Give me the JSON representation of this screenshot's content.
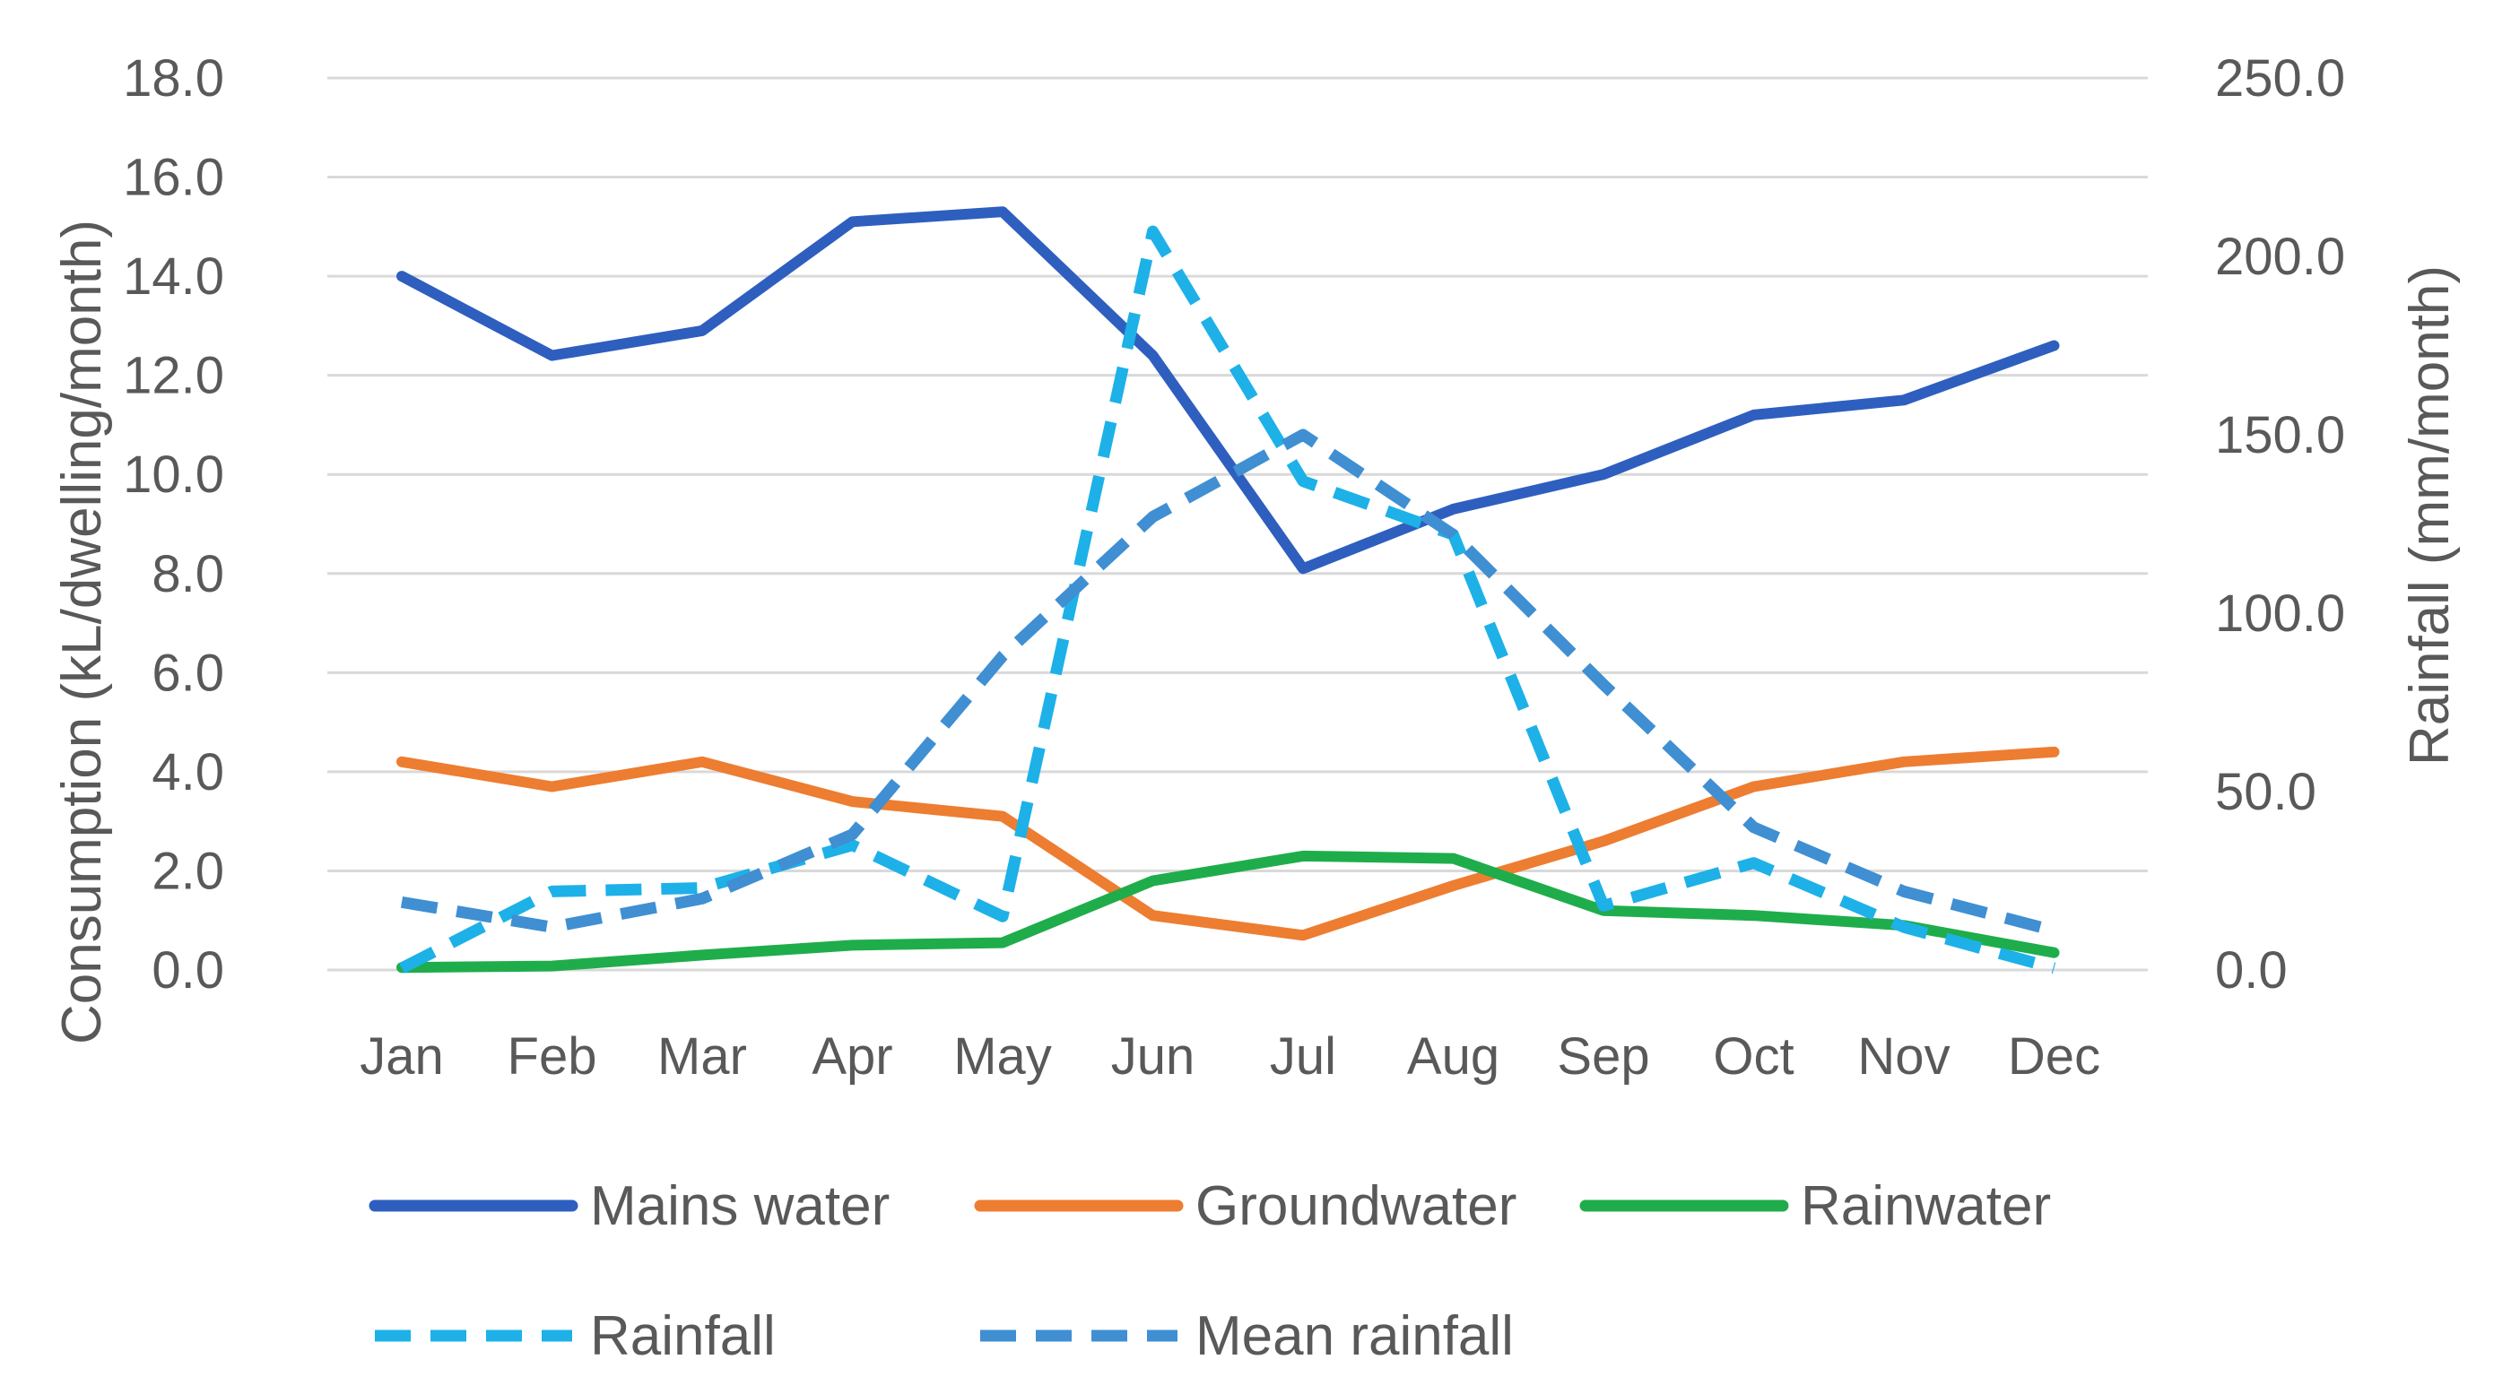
{
  "chart_data": {
    "type": "line",
    "title": "",
    "categories": [
      "Jan",
      "Feb",
      "Mar",
      "Apr",
      "May",
      "Jun",
      "Jul",
      "Aug",
      "Sep",
      "Oct",
      "Nov",
      "Dec"
    ],
    "y_left": {
      "label": "Consumption  (kL/dwelling/month)",
      "ylim": [
        0,
        18
      ],
      "ticks": [
        "0.0",
        "2.0",
        "4.0",
        "6.0",
        "8.0",
        "10.0",
        "12.0",
        "14.0",
        "16.0",
        "18.0"
      ]
    },
    "y_right": {
      "label": "Rainfall (mm/month)",
      "ylim": [
        0,
        250
      ],
      "ticks": [
        "0.0",
        "50.0",
        "100.0",
        "150.0",
        "200.0",
        "250.0"
      ]
    },
    "grid": true,
    "legend_position": "bottom",
    "series": [
      {
        "name": "Mains water",
        "axis": "left",
        "style": "solid",
        "color": "#2e5fbf",
        "values": [
          14.0,
          12.4,
          12.9,
          15.1,
          15.3,
          12.4,
          8.1,
          9.3,
          10.0,
          11.2,
          11.5,
          12.6
        ]
      },
      {
        "name": "Groundwater",
        "axis": "left",
        "style": "solid",
        "color": "#ed7d31",
        "values": [
          4.2,
          3.7,
          4.2,
          3.4,
          3.1,
          1.1,
          0.7,
          1.7,
          2.6,
          3.7,
          4.2,
          4.4
        ]
      },
      {
        "name": "Rainwater",
        "axis": "left",
        "style": "solid",
        "color": "#1fad4b",
        "values": [
          0.05,
          0.08,
          0.3,
          0.5,
          0.55,
          1.8,
          2.3,
          2.25,
          1.2,
          1.1,
          0.9,
          0.35
        ]
      },
      {
        "name": "Rainfall",
        "axis": "right",
        "style": "dashed",
        "color": "#1db1e8",
        "values": [
          0.5,
          22.0,
          23.0,
          35.0,
          15.0,
          207.0,
          137.0,
          122.0,
          18.0,
          30.0,
          12.0,
          0.5
        ]
      },
      {
        "name": "Mean rainfall",
        "axis": "right",
        "style": "dashed",
        "color": "#3f8fd2",
        "values": [
          19.0,
          12.0,
          20.0,
          38.0,
          88.0,
          127.0,
          150.0,
          122.0,
          80.0,
          40.0,
          22.0,
          11.0
        ]
      }
    ]
  }
}
